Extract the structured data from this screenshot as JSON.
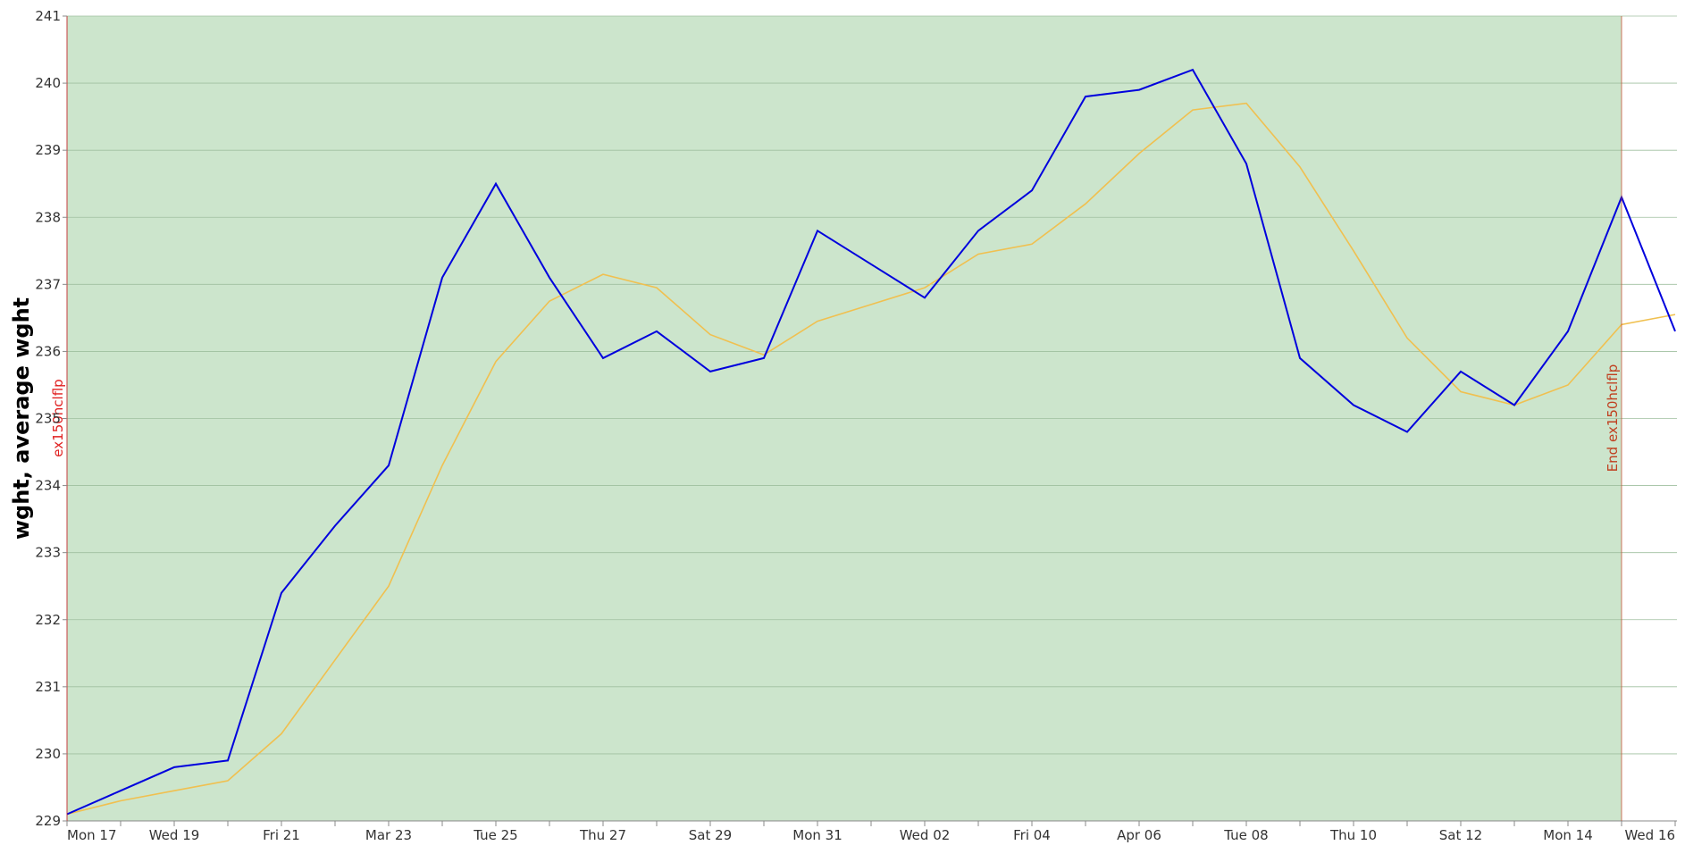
{
  "chart_data": {
    "type": "line",
    "title": "",
    "ylabel": "wght, average wght",
    "xlabel": "",
    "ylim": [
      229,
      241
    ],
    "xlim": [
      "2025-03-17",
      "2025-04-16"
    ],
    "yticks": [
      229,
      230,
      231,
      232,
      233,
      234,
      235,
      236,
      237,
      238,
      239,
      240,
      241
    ],
    "xticks": [
      {
        "date": "2025-03-17",
        "label": "Mon 17"
      },
      {
        "date": "2025-03-19",
        "label": "Wed 19"
      },
      {
        "date": "2025-03-21",
        "label": "Fri 21"
      },
      {
        "date": "2025-03-23",
        "label": "Mar 23"
      },
      {
        "date": "2025-03-25",
        "label": "Tue 25"
      },
      {
        "date": "2025-03-27",
        "label": "Thu 27"
      },
      {
        "date": "2025-03-29",
        "label": "Sat 29"
      },
      {
        "date": "2025-03-31",
        "label": "Mon 31"
      },
      {
        "date": "2025-04-02",
        "label": "Wed 02"
      },
      {
        "date": "2025-04-04",
        "label": "Fri 04"
      },
      {
        "date": "2025-04-06",
        "label": "Apr 06"
      },
      {
        "date": "2025-04-08",
        "label": "Tue 08"
      },
      {
        "date": "2025-04-10",
        "label": "Thu 10"
      },
      {
        "date": "2025-04-12",
        "label": "Sat 12"
      },
      {
        "date": "2025-04-14",
        "label": "Mon 14"
      },
      {
        "date": "2025-04-16",
        "label": "Wed 16"
      }
    ],
    "grid": true,
    "legend": "none",
    "x": [
      "2025-03-17",
      "2025-03-18",
      "2025-03-19",
      "2025-03-20",
      "2025-03-21",
      "2025-03-22",
      "2025-03-23",
      "2025-03-24",
      "2025-03-25",
      "2025-03-26",
      "2025-03-27",
      "2025-03-28",
      "2025-03-29",
      "2025-03-30",
      "2025-03-31",
      "2025-04-01",
      "2025-04-02",
      "2025-04-03",
      "2025-04-04",
      "2025-04-05",
      "2025-04-06",
      "2025-04-07",
      "2025-04-08",
      "2025-04-09",
      "2025-04-10",
      "2025-04-11",
      "2025-04-12",
      "2025-04-13",
      "2025-04-14",
      "2025-04-15",
      "2025-04-16"
    ],
    "series": [
      {
        "color": "#0000dd",
        "values": [
          229.1,
          229.45,
          229.8,
          229.9,
          232.4,
          233.4,
          234.3,
          237.1,
          238.5,
          237.1,
          235.9,
          236.3,
          235.7,
          235.9,
          237.8,
          237.3,
          236.8,
          237.8,
          238.4,
          239.8,
          239.9,
          240.2,
          238.8,
          235.9,
          235.2,
          234.8,
          235.7,
          235.2,
          236.3,
          238.3,
          236.3
        ]
      },
      {
        "color": "#f0c050",
        "values": [
          229.1,
          229.3,
          229.45,
          229.6,
          230.3,
          231.4,
          232.5,
          234.3,
          235.85,
          236.75,
          237.15,
          236.95,
          236.25,
          235.95,
          236.45,
          236.7,
          236.95,
          237.45,
          237.6,
          238.2,
          238.95,
          239.6,
          239.7,
          238.75,
          237.5,
          236.2,
          235.4,
          235.2,
          235.5,
          236.4,
          236.55
        ]
      }
    ],
    "shaded_region": {
      "start": "2025-03-17",
      "end": "2025-04-15",
      "color": "#cce5cc"
    },
    "annotations": [
      {
        "date": "2025-03-17",
        "label": "ex150hclflp",
        "color": "#e02020"
      },
      {
        "date": "2025-04-15",
        "label": "End ex150hclflp",
        "color": "#c04020"
      }
    ]
  }
}
